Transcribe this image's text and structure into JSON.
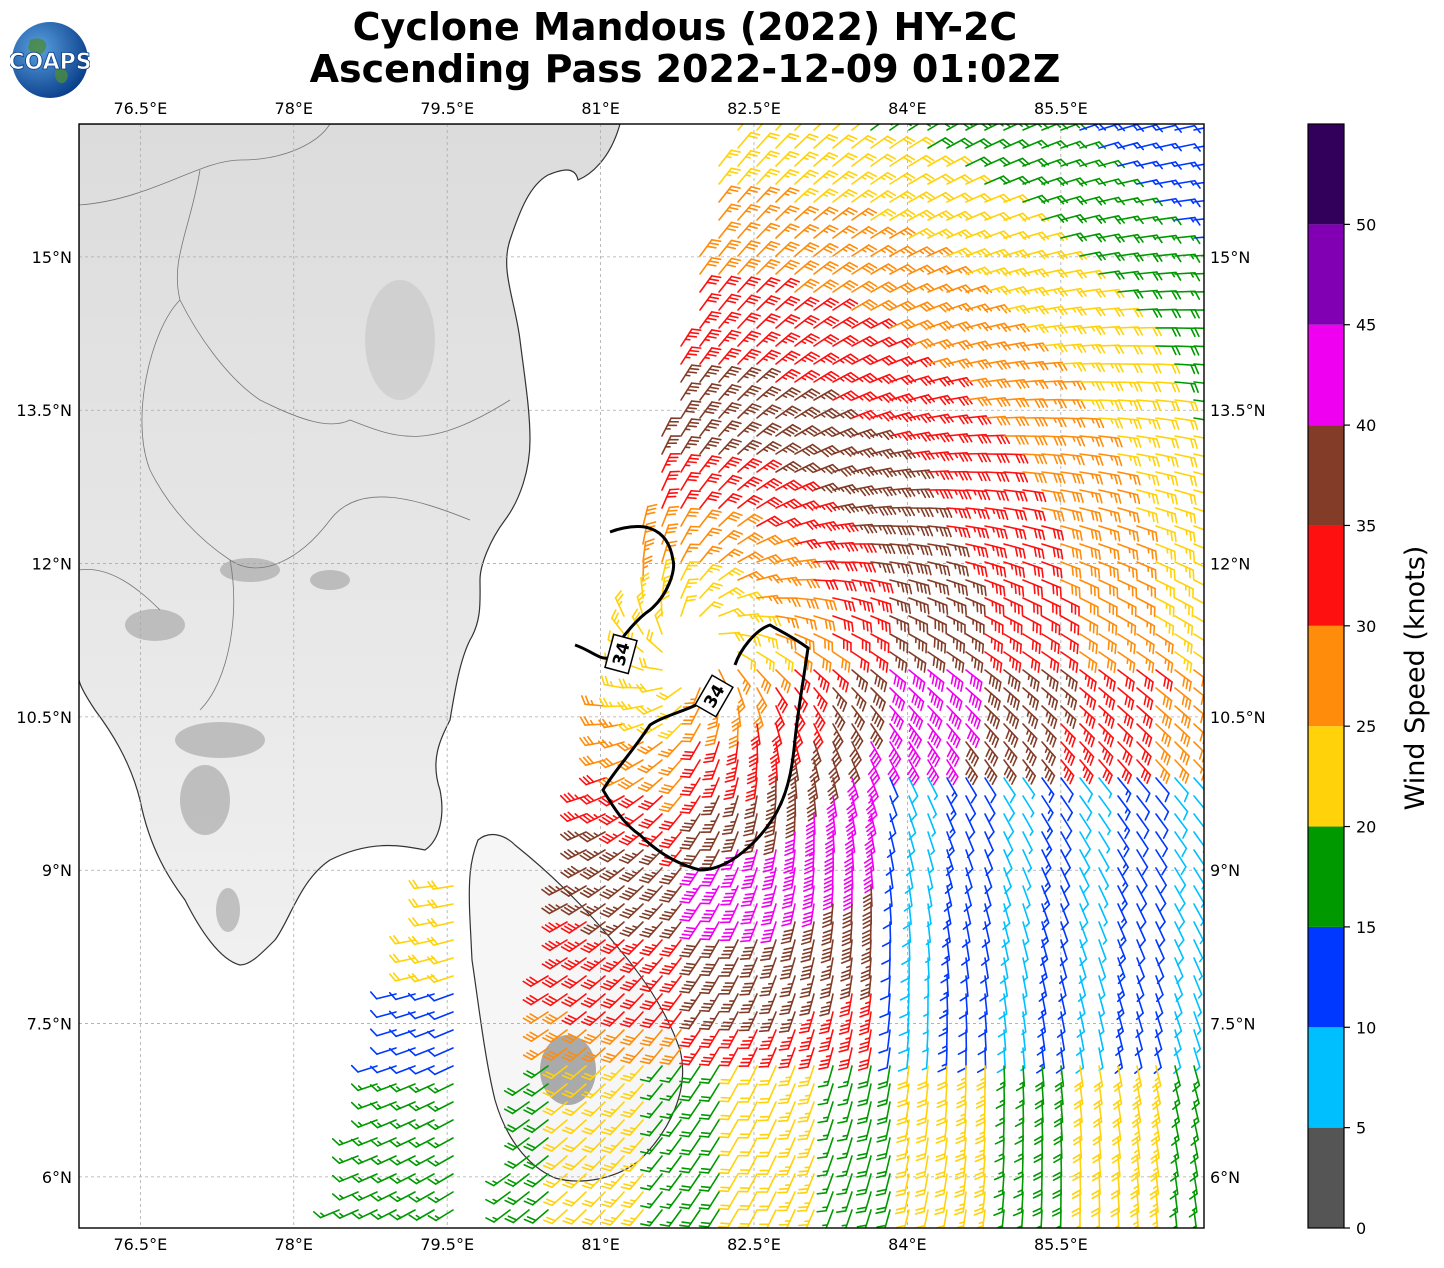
{
  "title": {
    "line1": "Cyclone Mandous (2022) HY-2C",
    "line2": "Ascending Pass 2022-12-09 01:02Z"
  },
  "logo": {
    "text": "COAPS",
    "icon": "globe-icon"
  },
  "axes": {
    "lon_ticks": [
      "76.5°E",
      "78°E",
      "79.5°E",
      "81°E",
      "82.5°E",
      "84°E",
      "85.5°E"
    ],
    "lat_ticks": [
      "15°N",
      "13.5°N",
      "12°N",
      "10.5°N",
      "9°N",
      "7.5°N",
      "6°N"
    ]
  },
  "contour": {
    "label": "34",
    "color": "#000000"
  },
  "colorbar": {
    "label": "Wind Speed (knots)",
    "ticks": [
      "0",
      "5",
      "10",
      "15",
      "20",
      "25",
      "30",
      "35",
      "40",
      "45",
      "50"
    ],
    "colors": [
      "#555555",
      "#00bfff",
      "#0038ff",
      "#009900",
      "#ffd20a",
      "#ff8c0a",
      "#ff1010",
      "#823c28",
      "#f000f0",
      "#8200b4",
      "#32005a"
    ]
  },
  "chart_data": {
    "type": "wind-barb map",
    "lon_range": [
      75.9,
      86.9
    ],
    "lat_range": [
      5.5,
      16.3
    ],
    "storm_center": {
      "lon": 81.9,
      "lat": 11.1
    },
    "wind_speed_bins_knots": [
      0,
      5,
      10,
      15,
      20,
      25,
      30,
      35,
      40,
      45,
      50,
      55
    ]
  }
}
